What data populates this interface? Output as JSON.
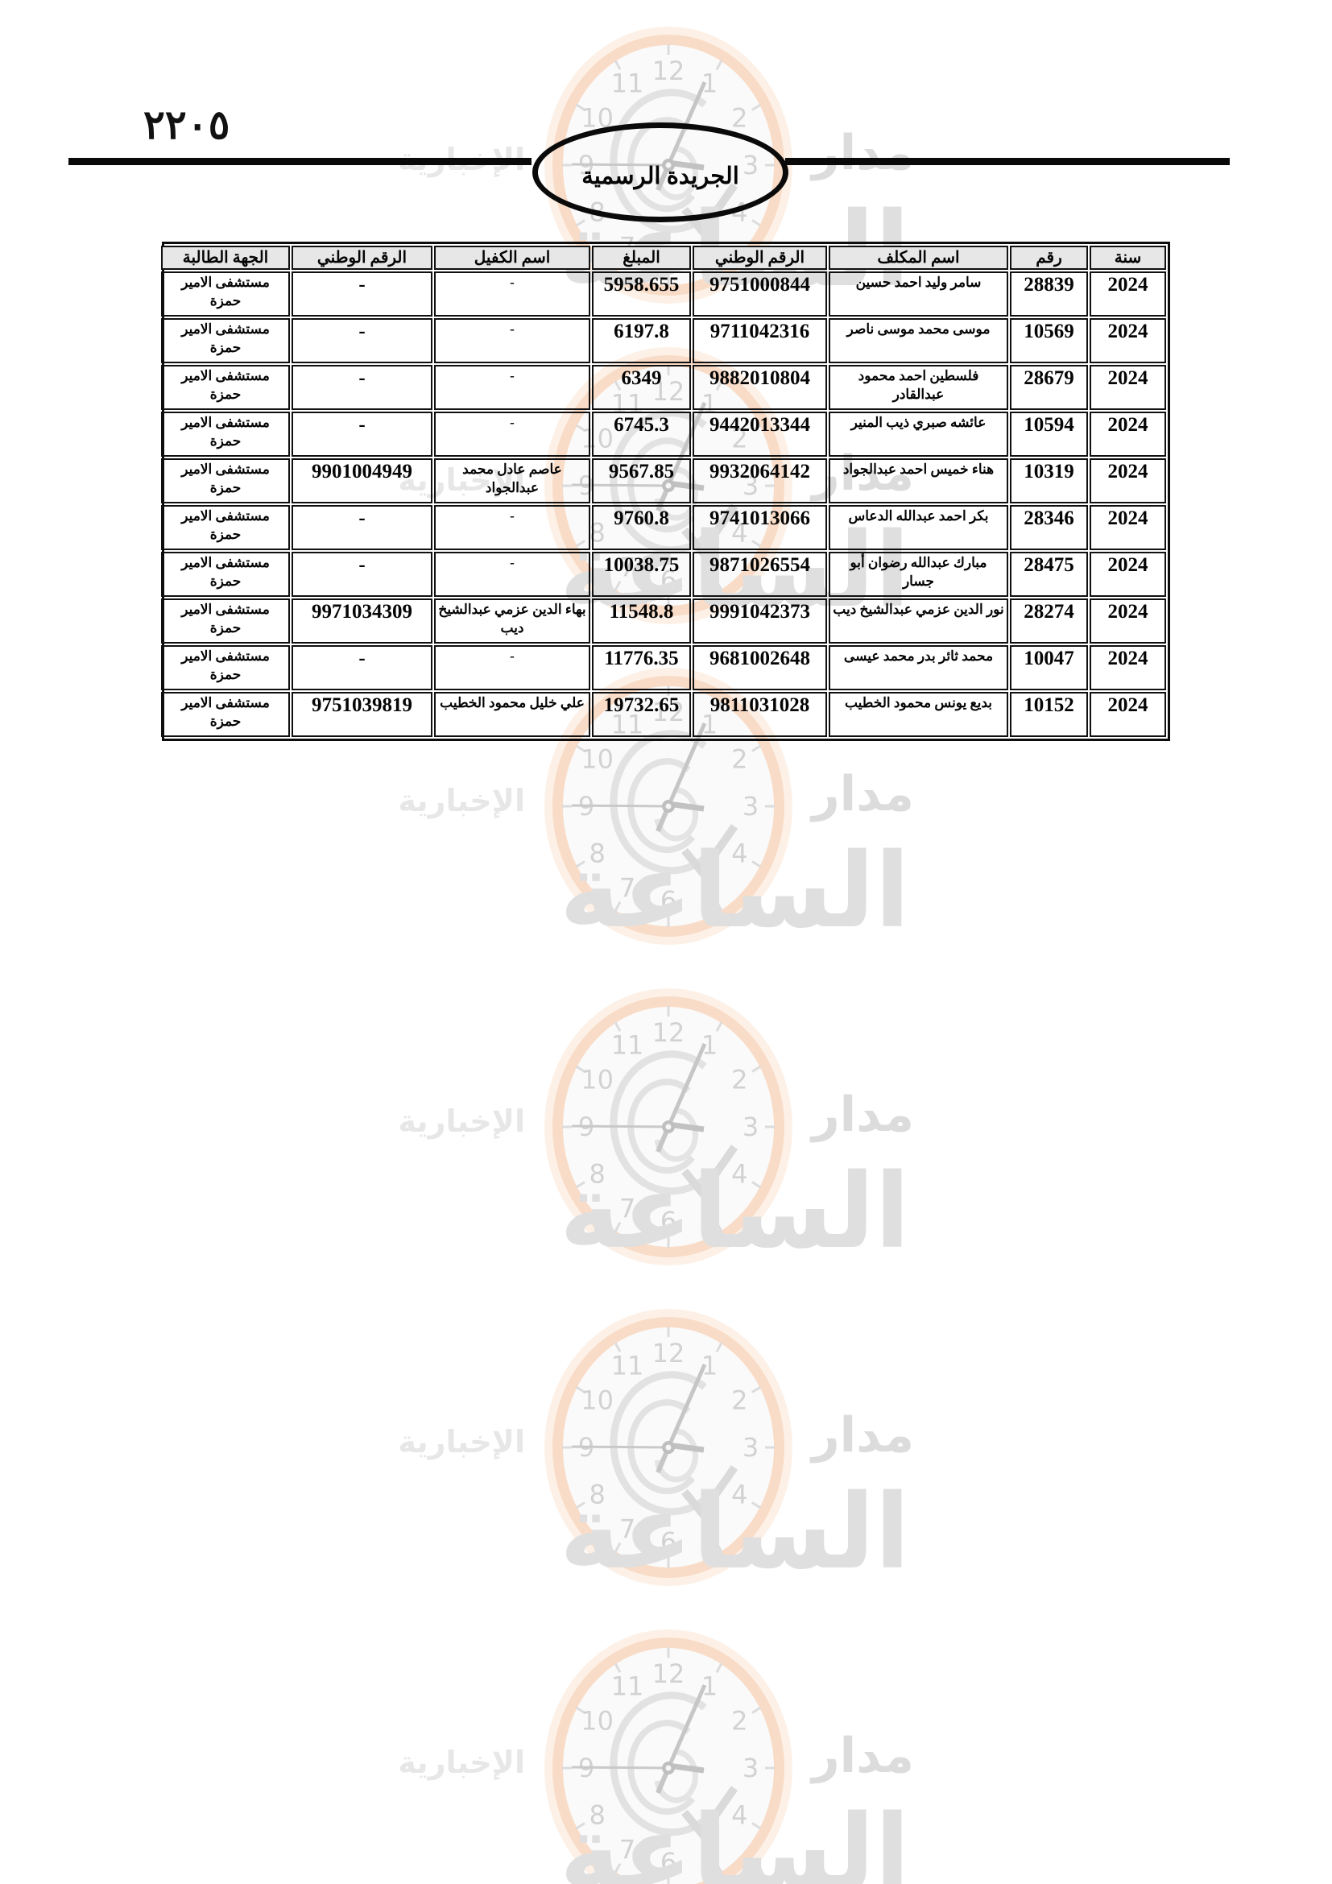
{
  "page": {
    "number_arabic": "٢٢٠٥",
    "gazette_title": "الجريدة الرسمية"
  },
  "watermark": {
    "brand_top": "مدار",
    "brand_main": "الساعة",
    "brand_sub": "الإخبارية",
    "clock_numbers": [
      "12",
      "1",
      "2",
      "3",
      "4",
      "5",
      "6",
      "7",
      "8",
      "9",
      "10",
      "11"
    ]
  },
  "table": {
    "headers": [
      "سنة",
      "رقم",
      "اسم المكلف",
      "الرقم الوطني",
      "المبلغ",
      "اسم الكفيل",
      "الرقم الوطني",
      "الجهة الطالبة"
    ],
    "rows": [
      [
        "2024",
        "28839",
        "سامر وليد احمد حسين",
        "9751000844",
        "5958.655",
        "-",
        "-",
        "مستشفى الامير حمزة"
      ],
      [
        "2024",
        "10569",
        "موسى محمد موسى ناصر",
        "9711042316",
        "6197.8",
        "-",
        "-",
        "مستشفى الامير حمزة"
      ],
      [
        "2024",
        "28679",
        "فلسطين احمد محمود عبدالقادر",
        "9882010804",
        "6349",
        "-",
        "-",
        "مستشفى الامير حمزة"
      ],
      [
        "2024",
        "10594",
        "عائشه صبري ذيب المنير",
        "9442013344",
        "6745.3",
        "-",
        "-",
        "مستشفى الامير حمزة"
      ],
      [
        "2024",
        "10319",
        "هناء خميس احمد عبدالجواد",
        "9932064142",
        "9567.85",
        "عاصم عادل محمد عبدالجواد",
        "9901004949",
        "مستشفى الامير حمزة"
      ],
      [
        "2024",
        "28346",
        "بكر احمد عبدالله الدعاس",
        "9741013066",
        "9760.8",
        "-",
        "-",
        "مستشفى الامير حمزة"
      ],
      [
        "2024",
        "28475",
        "مبارك عبدالله رضوان أبو جسار",
        "9871026554",
        "10038.75",
        "-",
        "-",
        "مستشفى الامير حمزة"
      ],
      [
        "2024",
        "28274",
        "نور الدين عزمي عبدالشيخ ديب",
        "9991042373",
        "11548.8",
        "بهاء الدين عزمي عبدالشيخ ديب",
        "9971034309",
        "مستشفى الامير حمزة"
      ],
      [
        "2024",
        "10047",
        "محمد ثائر بدر محمد عيسى",
        "9681002648",
        "11776.35",
        "-",
        "-",
        "مستشفى الامير حمزة"
      ],
      [
        "2024",
        "10152",
        "بديع يونس محمود الخطيب",
        "9811031028",
        "19732.65",
        "علي خليل محمود الخطيب",
        "9751039819",
        "مستشفى الامير حمزة"
      ]
    ]
  }
}
